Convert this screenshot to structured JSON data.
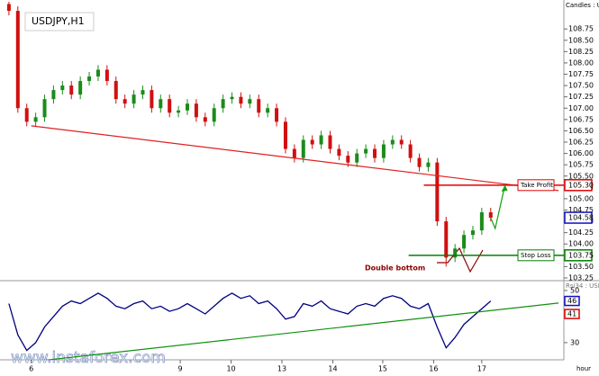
{
  "chart_data": {
    "type": "candlestick",
    "title": "USDJPY,H1",
    "subtitle": "Candles : U",
    "x_unit": "hour",
    "annotation": "Double bottom",
    "watermark": "www.instaforex.com",
    "xlim": [
      -1,
      62.2
    ],
    "ylim": [
      103.19,
      109.35
    ],
    "xticks": [
      {
        "value": 2.5,
        "label": "6"
      },
      {
        "value": 19.2,
        "label": "9"
      },
      {
        "value": 24.9,
        "label": "10"
      },
      {
        "value": 30.6,
        "label": "13"
      },
      {
        "value": 36.3,
        "label": "14"
      },
      {
        "value": 41.9,
        "label": "15"
      },
      {
        "value": 47.6,
        "label": "16"
      },
      {
        "value": 53,
        "label": "17"
      }
    ],
    "yticks": [
      108.75,
      {
        "value": 108.5,
        "label": "108.50"
      },
      108.25,
      {
        "value": 108,
        "label": "108.00"
      },
      107.75,
      {
        "value": 107.5,
        "label": "107.50"
      },
      107.25,
      {
        "value": 107,
        "label": "107.00"
      },
      106.75,
      {
        "value": 106.5,
        "label": "106.50"
      },
      106.25,
      {
        "value": 106,
        "label": "106.00"
      },
      105.75,
      {
        "value": 105.5,
        "label": "105.50"
      },
      105.25,
      {
        "value": 105,
        "label": "105.00"
      },
      104.75,
      {
        "value": 104.5,
        "label": "104.50"
      },
      104.25,
      {
        "value": 104,
        "label": "104.00"
      },
      103.75,
      {
        "value": 103.5,
        "label": "103.50"
      },
      103.25
    ],
    "up_color": "#1a8c1a",
    "down_color": "#d01010",
    "candles": [
      [
        109.3,
        109.4,
        109.05,
        109.15
      ],
      [
        109.15,
        109.25,
        106.9,
        107.0
      ],
      [
        107.0,
        107.1,
        106.6,
        106.7
      ],
      [
        106.7,
        106.9,
        106.6,
        106.8
      ],
      [
        106.8,
        107.3,
        106.7,
        107.2
      ],
      [
        107.2,
        107.5,
        107.1,
        107.4
      ],
      [
        107.4,
        107.6,
        107.3,
        107.5
      ],
      [
        107.5,
        107.6,
        107.2,
        107.3
      ],
      [
        107.3,
        107.7,
        107.2,
        107.6
      ],
      [
        107.6,
        107.8,
        107.5,
        107.7
      ],
      [
        107.7,
        107.95,
        107.6,
        107.85
      ],
      [
        107.85,
        107.95,
        107.5,
        107.6
      ],
      [
        107.6,
        107.7,
        107.1,
        107.2
      ],
      [
        107.2,
        107.3,
        107.0,
        107.1
      ],
      [
        107.1,
        107.4,
        107.0,
        107.3
      ],
      [
        107.3,
        107.5,
        107.2,
        107.4
      ],
      [
        107.4,
        107.5,
        106.9,
        107.0
      ],
      [
        107.0,
        107.3,
        106.9,
        107.2
      ],
      [
        107.2,
        107.3,
        106.8,
        106.9
      ],
      [
        106.9,
        107.05,
        106.8,
        106.95
      ],
      [
        106.95,
        107.2,
        106.85,
        107.1
      ],
      [
        107.1,
        107.2,
        106.7,
        106.8
      ],
      [
        106.8,
        106.9,
        106.6,
        106.7
      ],
      [
        106.7,
        107.1,
        106.6,
        107.0
      ],
      [
        107.0,
        107.3,
        106.9,
        107.2
      ],
      [
        107.2,
        107.35,
        107.1,
        107.25
      ],
      [
        107.25,
        107.35,
        107.0,
        107.1
      ],
      [
        107.1,
        107.3,
        107.0,
        107.2
      ],
      [
        107.2,
        107.3,
        106.8,
        106.9
      ],
      [
        106.9,
        107.1,
        106.8,
        107.0
      ],
      [
        107.0,
        107.1,
        106.6,
        106.7
      ],
      [
        106.7,
        106.8,
        106.0,
        106.1
      ],
      [
        106.1,
        106.2,
        105.8,
        105.9
      ],
      [
        105.9,
        106.4,
        105.8,
        106.3
      ],
      [
        106.3,
        106.4,
        106.1,
        106.2
      ],
      [
        106.2,
        106.5,
        106.1,
        106.4
      ],
      [
        106.4,
        106.5,
        106.0,
        106.1
      ],
      [
        106.1,
        106.2,
        105.85,
        105.95
      ],
      [
        105.95,
        106.05,
        105.7,
        105.8
      ],
      [
        105.8,
        106.1,
        105.7,
        106.0
      ],
      [
        106.0,
        106.2,
        105.9,
        106.1
      ],
      [
        106.1,
        106.2,
        105.8,
        105.9
      ],
      [
        105.9,
        106.3,
        105.8,
        106.2
      ],
      [
        106.2,
        106.4,
        106.1,
        106.3
      ],
      [
        106.3,
        106.4,
        106.1,
        106.2
      ],
      [
        106.2,
        106.3,
        105.8,
        105.9
      ],
      [
        105.9,
        106.0,
        105.6,
        105.7
      ],
      [
        105.7,
        105.9,
        105.6,
        105.8
      ],
      [
        105.8,
        105.9,
        104.4,
        104.5
      ],
      [
        104.5,
        104.6,
        103.5,
        103.7
      ],
      [
        103.7,
        104.0,
        103.6,
        103.9
      ],
      [
        103.9,
        104.3,
        103.8,
        104.2
      ],
      [
        104.2,
        104.4,
        104.1,
        104.3
      ],
      [
        104.3,
        104.8,
        104.2,
        104.7
      ],
      [
        104.7,
        104.8,
        104.5,
        104.58
      ]
    ],
    "trendline": {
      "color": "#e02020",
      "x": [
        2.5,
        61.6
      ],
      "values": [
        106.61,
        105.18
      ]
    },
    "levels": [
      {
        "name": "Take Profit",
        "value": 105.3,
        "label": "105.30",
        "color": "#e00000",
        "from": 46.5
      },
      {
        "name": "Stop Loss",
        "value": 103.75,
        "label": "103.75",
        "color": "#008000",
        "from": 44.8
      }
    ],
    "price_tag": {
      "value": 104.58,
      "label": "104.58",
      "color": "#1010c0"
    },
    "oscillator": {
      "name": "Rsi34 : USD",
      "ylim": [
        23.4,
        53.1
      ],
      "yticks": [
        30,
        50
      ],
      "color": "#000080",
      "values": [
        45,
        33,
        27,
        30,
        36,
        40,
        44,
        46,
        45,
        47,
        49,
        47,
        44,
        43,
        45,
        46,
        43,
        44,
        42,
        43,
        45,
        43,
        41,
        44,
        47,
        49,
        47,
        48,
        45,
        46,
        43,
        39,
        40,
        45,
        44,
        46,
        43,
        42,
        41,
        44,
        45,
        44,
        47,
        48,
        47,
        44,
        43,
        45,
        36,
        28,
        32,
        37,
        40,
        43,
        46
      ],
      "tags": [
        {
          "value": 46,
          "label": "46",
          "color": "#1010c0"
        },
        {
          "value": 41,
          "label": "41",
          "color": "#e00000"
        }
      ],
      "trendline": {
        "color": "#109010",
        "x": [
          0,
          61.6
        ],
        "values": [
          21.7,
          45.2
        ]
      }
    }
  }
}
